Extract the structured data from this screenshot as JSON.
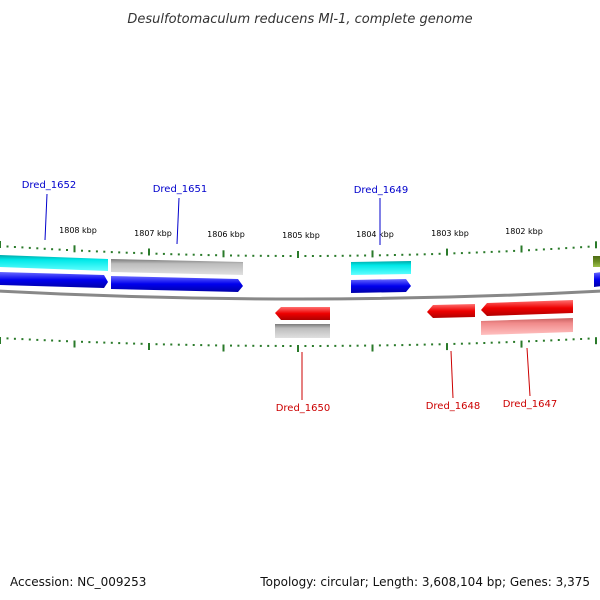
{
  "title": "Desulfotomaculum reducens MI-1, complete genome",
  "footer": {
    "accession": "Accession: NC_009253",
    "topology": "Topology: circular; Length: 3,608,104 bp; Genes: 3,375"
  },
  "kbp_ticks": [
    "1808 kbp",
    "1807 kbp",
    "1806 kbp",
    "1805 kbp",
    "1804 kbp",
    "1803 kbp",
    "1802 kbp"
  ],
  "genes_forward": [
    {
      "label": "Dred_1652"
    },
    {
      "label": "Dred_1651"
    },
    {
      "label": "Dred_1649"
    }
  ],
  "genes_reverse": [
    {
      "label": "Dred_1650"
    },
    {
      "label": "Dred_1648"
    },
    {
      "label": "Dred_1647"
    }
  ],
  "colors": {
    "forward_label": "#0000cc",
    "reverse_label": "#cc0000",
    "tick": "#2a7a2a",
    "cds_forward": "#0000ee",
    "cds_reverse": "#ee0000",
    "rna_cyan": "#00e0e0",
    "gray": "#b0b0b0",
    "pink": "#f08a8a",
    "olive": "#6b8e23"
  }
}
